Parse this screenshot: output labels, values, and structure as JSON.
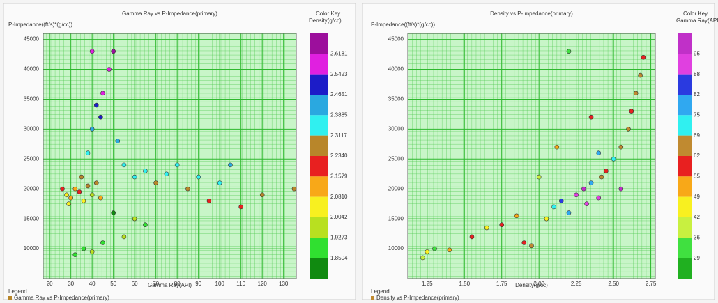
{
  "chart_data": [
    {
      "type": "scatter",
      "title": "Gamma Ray vs P-Impedance(primary)",
      "ylabel": "P-Impedance((ft/s)*(g/cc))",
      "xlabel": "Gamma Ray(API)",
      "xlim": [
        17,
        136
      ],
      "xticks": [
        20,
        30,
        40,
        50,
        60,
        70,
        80,
        90,
        100,
        110,
        120,
        130
      ],
      "ylim": [
        5000,
        46000
      ],
      "yticks": [
        10000,
        15000,
        20000,
        25000,
        30000,
        35000,
        40000,
        45000
      ],
      "grid": true,
      "legend_title": "Legend",
      "color_key": {
        "title": "Color Key",
        "label": "Density(g/cc)",
        "colors": [
          "#9c0f9c",
          "#e020e0",
          "#1c1cc8",
          "#2aa8e0",
          "#30f0f0",
          "#b8862a",
          "#e82020",
          "#f8a818",
          "#f8f020",
          "#b8e020",
          "#30e030",
          "#108a10"
        ],
        "ticks": [
          2.6181,
          2.5423,
          2.4651,
          2.3885,
          2.3117,
          {
            "value": 2.234,
            "label": "2.2340"
          },
          2.1579,
          {
            "value": 2.081,
            "label": "2.0810"
          },
          2.0042,
          1.9273,
          1.8504
        ]
      },
      "series": [
        {
          "name": "Gamma Ray vs P-Impedance(primary)",
          "x": [
            28,
            30,
            32,
            34,
            36,
            38,
            40,
            42,
            44,
            26,
            29,
            35,
            38,
            40,
            42,
            45,
            48,
            50,
            40,
            44,
            52,
            55,
            60,
            65,
            70,
            75,
            80,
            85,
            90,
            95,
            100,
            105,
            110,
            120,
            135,
            32,
            36,
            40,
            45,
            55,
            60,
            65,
            50
          ],
          "y": [
            19000,
            18500,
            20000,
            19500,
            18000,
            20500,
            19000,
            21000,
            18500,
            20000,
            17500,
            22000,
            26000,
            30000,
            34000,
            36000,
            40000,
            43000,
            43000,
            32000,
            28000,
            24000,
            22000,
            23000,
            21000,
            22500,
            24000,
            20000,
            22000,
            18000,
            21000,
            24000,
            17000,
            19000,
            20000,
            9000,
            10000,
            9500,
            11000,
            12000,
            15000,
            14000,
            16000
          ],
          "c": [
            2.05,
            2.1,
            2.15,
            2.2,
            2.08,
            2.25,
            2.0,
            2.3,
            2.12,
            2.18,
            2.02,
            2.28,
            2.35,
            2.45,
            2.5,
            2.55,
            2.6,
            2.65,
            2.58,
            2.48,
            2.42,
            2.36,
            2.33,
            2.34,
            2.3,
            2.37,
            2.38,
            2.24,
            2.35,
            2.2,
            2.32,
            2.4,
            2.22,
            2.3,
            2.26,
            1.9,
            1.88,
            1.95,
            1.92,
            1.98,
            2.0,
            1.9,
            1.85
          ]
        }
      ]
    },
    {
      "type": "scatter",
      "title": "Density vs P-Impedance(primary)",
      "ylabel": "P-Impedance((ft/s)*(g/cc))",
      "xlabel": "Density(g/cc)",
      "xlim": [
        1.12,
        2.78
      ],
      "xticks": [
        1.25,
        {
          "value": 1.5,
          "label": "1.50"
        },
        1.75,
        {
          "value": 2.0,
          "label": "2.00"
        },
        2.25,
        {
          "value": 2.5,
          "label": "2.50"
        },
        2.75
      ],
      "ylim": [
        5000,
        46000
      ],
      "yticks": [
        10000,
        15000,
        20000,
        25000,
        30000,
        35000,
        40000,
        45000
      ],
      "grid": true,
      "legend_title": "Legend",
      "color_key": {
        "title": "Color Key",
        "label": "Gamma Ray(API)",
        "colors": [
          "#c030c8",
          "#e040e0",
          "#2a3ae0",
          "#30a8f0",
          "#30f0f0",
          "#c08a30",
          "#e82020",
          "#f8a818",
          "#f8f020",
          "#c8f040",
          "#40e040",
          "#20b020"
        ],
        "ticks": [
          95,
          88,
          82,
          75,
          69,
          62,
          55,
          49,
          42,
          36,
          29
        ]
      },
      "series": [
        {
          "name": "Density vs P-Impedance(primary)",
          "x": [
            1.22,
            1.25,
            1.3,
            1.4,
            1.55,
            1.65,
            1.75,
            1.85,
            1.9,
            1.95,
            2.05,
            2.1,
            2.15,
            2.2,
            2.25,
            2.3,
            2.32,
            2.35,
            2.4,
            2.42,
            2.45,
            2.5,
            2.55,
            2.6,
            2.62,
            2.65,
            2.68,
            2.7,
            2.55,
            2.35,
            2.12,
            2.0,
            2.2,
            2.4
          ],
          "y": [
            8500,
            9500,
            10000,
            9800,
            12000,
            13500,
            14000,
            15500,
            11000,
            10500,
            15000,
            17000,
            18000,
            16000,
            19000,
            20000,
            17500,
            21000,
            18500,
            22000,
            23000,
            25000,
            27000,
            30000,
            33000,
            36000,
            39000,
            42000,
            20000,
            32000,
            27000,
            22000,
            43000,
            26000
          ],
          "c": [
            40,
            45,
            35,
            50,
            55,
            48,
            60,
            52,
            58,
            62,
            45,
            70,
            85,
            75,
            90,
            95,
            88,
            80,
            92,
            65,
            60,
            72,
            68,
            64,
            58,
            62,
            66,
            60,
            96,
            55,
            50,
            40,
            30,
            78
          ]
        }
      ]
    }
  ]
}
